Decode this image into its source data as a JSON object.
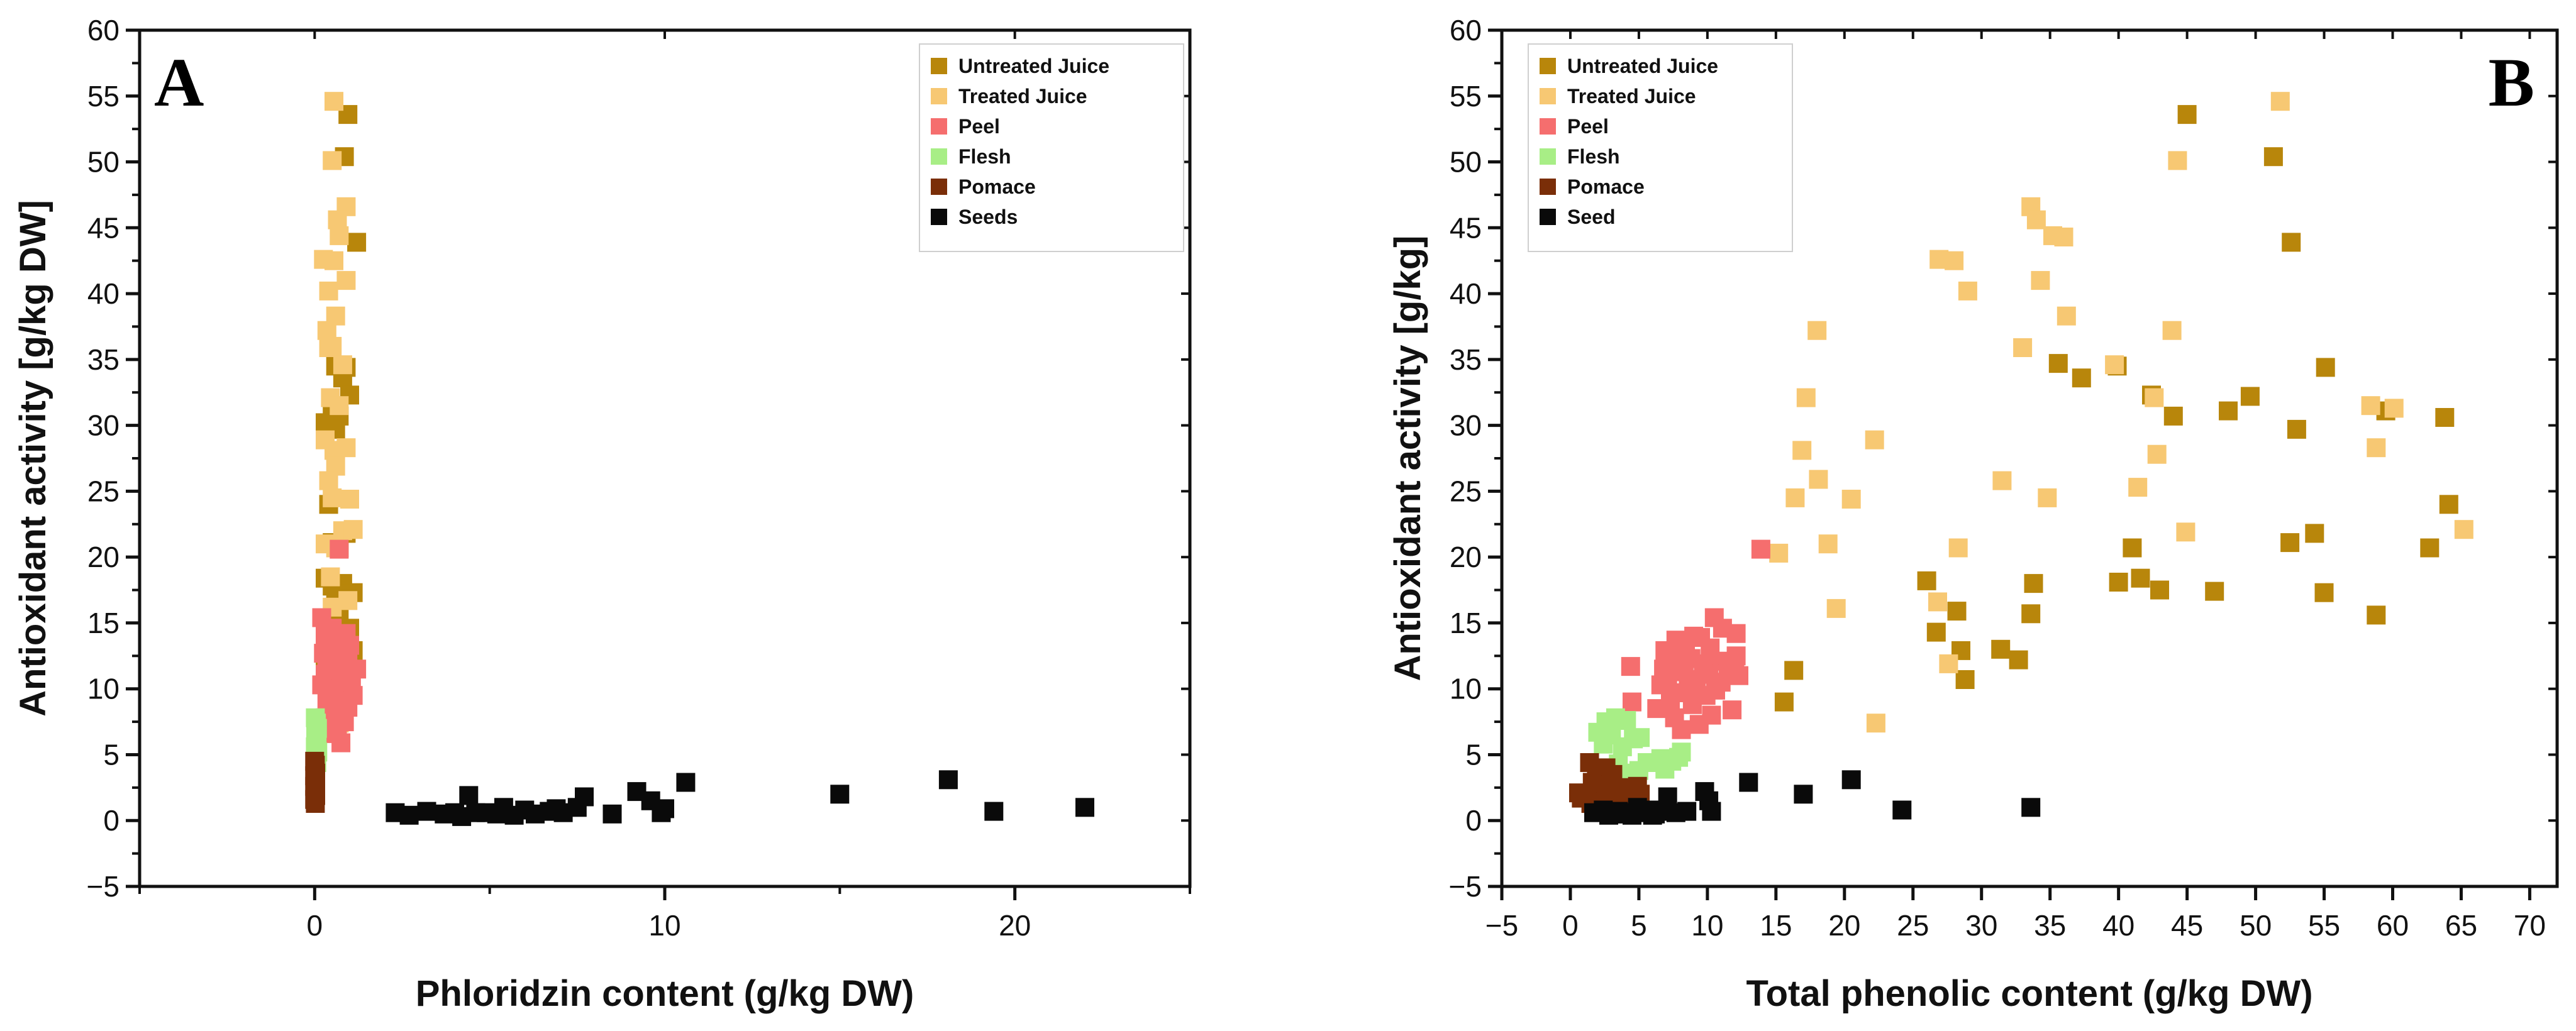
{
  "colors": {
    "untreated": "#B8860B",
    "treated": "#F7C873",
    "peel": "#F56E6E",
    "flesh": "#A8EE86",
    "pomace": "#7A2E08",
    "seeds": "#0A0A0A",
    "axis": "#111111"
  },
  "chart_data": [
    {
      "type": "scatter",
      "panel": "A",
      "xlabel": "Phloridzin content (g/kg DW)",
      "ylabel": "Antioxidant activity [g/kg DW]",
      "xlim": [
        -5,
        25
      ],
      "ylim": [
        -5,
        60
      ],
      "xticks": [
        0,
        10,
        20
      ],
      "yticks": [
        -5,
        0,
        5,
        10,
        15,
        20,
        25,
        30,
        35,
        40,
        45,
        50,
        55,
        60
      ],
      "legend_position": "top-right",
      "series": [
        {
          "name": "Untreated Juice",
          "color_key": "untreated",
          "x": [
            0.95,
            0.85,
            1.2,
            0.6,
            0.9,
            0.8,
            1.0,
            0.5,
            0.7,
            0.3,
            0.6,
            0.4,
            0.5,
            0.9,
            0.7,
            0.3,
            0.8,
            0.5,
            1.1,
            0.6,
            0.9,
            0.7,
            0.6,
            1.0,
            0.8,
            0.4,
            1.1,
            0.7,
            0.3,
            0.9
          ],
          "y": [
            53.6,
            50.4,
            43.9,
            34.5,
            34.4,
            33.6,
            32.3,
            31.1,
            30.7,
            30.2,
            29.7,
            24.0,
            21.1,
            21.8,
            20.7,
            18.4,
            18.0,
            17.8,
            17.3,
            17.4,
            17.2,
            15.7,
            15.6,
            14.6,
            14.3,
            13.1,
            12.9,
            12.5,
            12.2,
            10.7
          ]
        },
        {
          "name": "Treated Juice",
          "color_key": "treated",
          "x": [
            0.55,
            0.5,
            0.9,
            0.65,
            0.7,
            0.25,
            0.55,
            0.4,
            0.9,
            0.35,
            0.6,
            0.4,
            0.5,
            0.8,
            0.45,
            0.7,
            0.3,
            0.55,
            0.9,
            0.6,
            0.4,
            1.0,
            0.5,
            0.3,
            0.8,
            0.6,
            1.1,
            0.45,
            0.95,
            0.5,
            0.35,
            0.7
          ],
          "y": [
            54.6,
            50.1,
            46.6,
            45.6,
            44.4,
            42.6,
            42.5,
            40.2,
            41.0,
            37.2,
            38.3,
            35.9,
            36.0,
            34.6,
            32.1,
            31.5,
            28.9,
            28.1,
            28.3,
            26.9,
            25.8,
            24.4,
            24.5,
            21.0,
            22.0,
            20.7,
            22.1,
            18.5,
            16.7,
            16.2,
            13.5,
            7.4
          ]
        },
        {
          "name": "Peel",
          "color_key": "peel",
          "x": [
            0.7,
            0.2,
            0.5,
            0.9,
            0.3,
            0.6,
            1.0,
            0.4,
            0.8,
            0.25,
            0.55,
            0.95,
            0.35,
            0.7,
            1.2,
            0.45,
            0.85,
            0.3,
            0.6,
            1.05,
            0.5,
            0.75,
            0.2,
            0.65,
            0.9,
            0.4,
            1.1,
            0.55,
            0.8,
            0.35,
            0.6,
            0.95,
            0.45,
            0.7,
            0.3,
            0.85,
            0.5,
            0.65,
            0.4,
            0.75
          ],
          "y": [
            20.6,
            15.4,
            14.6,
            14.2,
            14.0,
            13.7,
            13.3,
            13.1,
            12.9,
            12.7,
            12.5,
            12.3,
            12.1,
            12.0,
            11.5,
            11.6,
            11.3,
            11.1,
            11.0,
            10.9,
            10.7,
            10.5,
            10.3,
            10.0,
            9.9,
            9.7,
            9.5,
            9.3,
            9.1,
            9.0,
            8.8,
            8.6,
            8.4,
            8.1,
            7.8,
            7.5,
            7.2,
            6.9,
            6.6,
            5.9
          ]
        },
        {
          "name": "Flesh",
          "color_key": "flesh",
          "x": [
            0.02,
            0.05,
            0.08,
            0.03,
            0.06,
            0.04,
            0.07,
            0.02,
            0.05,
            0.09,
            0.03,
            0.06
          ],
          "y": [
            7.8,
            7.4,
            7.0,
            6.7,
            6.4,
            6.1,
            5.9,
            5.6,
            5.4,
            5.2,
            4.8,
            4.4
          ]
        },
        {
          "name": "Pomace",
          "color_key": "pomace",
          "x": [
            0.0,
            0.02,
            0.01,
            0.03,
            0.0,
            0.02,
            0.01,
            0.03,
            0.0,
            0.02,
            0.01,
            0.03,
            0.0,
            0.02
          ],
          "y": [
            4.5,
            4.2,
            3.9,
            3.6,
            3.4,
            3.2,
            3.0,
            2.8,
            2.6,
            2.3,
            2.1,
            1.9,
            1.6,
            1.3
          ]
        },
        {
          "name": "Seeds",
          "color_key": "seeds",
          "x": [
            2.3,
            2.7,
            3.2,
            3.7,
            4.0,
            4.4,
            4.6,
            4.9,
            5.2,
            5.4,
            6.0,
            6.3,
            6.7,
            7.1,
            7.5,
            7.7,
            8.5,
            9.2,
            9.6,
            9.9,
            10.0,
            10.6,
            15.0,
            18.1,
            19.4,
            22.0,
            4.2,
            5.7,
            6.9
          ],
          "y": [
            0.6,
            0.4,
            0.7,
            0.5,
            0.6,
            1.9,
            0.6,
            0.6,
            0.5,
            1.0,
            0.8,
            0.5,
            0.7,
            0.6,
            1.0,
            1.8,
            0.5,
            2.2,
            1.5,
            0.6,
            0.9,
            2.9,
            2.0,
            3.1,
            0.7,
            1.0,
            0.3,
            0.4,
            0.9
          ]
        }
      ]
    },
    {
      "type": "scatter",
      "panel": "B",
      "xlabel": "Total phenolic content (g/kg DW)",
      "ylabel": "Antioxidant activity [g/kg]",
      "xlim": [
        -5,
        72
      ],
      "ylim": [
        -5,
        60
      ],
      "xticks": [
        -5,
        0,
        5,
        10,
        15,
        20,
        25,
        30,
        35,
        40,
        45,
        50,
        55,
        60,
        65,
        70
      ],
      "yticks": [
        -5,
        0,
        5,
        10,
        15,
        20,
        25,
        30,
        35,
        40,
        45,
        50,
        55,
        60
      ],
      "legend_position": "top-left",
      "series": [
        {
          "name": "Untreated Juice",
          "color_key": "untreated",
          "x": [
            45.0,
            51.3,
            52.6,
            35.6,
            39.9,
            37.3,
            42.4,
            44.0,
            48.0,
            49.6,
            53.0,
            55.1,
            59.5,
            63.8,
            64.1,
            62.7,
            52.5,
            54.3,
            41.0,
            41.6,
            40.0,
            43.0,
            47.0,
            55.0,
            58.8,
            33.8,
            26.0,
            28.2,
            33.6,
            26.7,
            28.5,
            31.4,
            32.7,
            16.3,
            15.6,
            28.8
          ],
          "y": [
            53.6,
            50.4,
            43.9,
            34.7,
            34.5,
            33.6,
            32.3,
            30.7,
            31.1,
            32.2,
            29.7,
            34.4,
            31.1,
            30.6,
            24.0,
            20.7,
            21.1,
            21.8,
            20.7,
            18.4,
            18.1,
            17.5,
            17.4,
            17.3,
            15.6,
            18.0,
            18.2,
            15.9,
            15.7,
            14.3,
            12.9,
            13.0,
            12.2,
            11.4,
            9.0,
            10.7
          ]
        },
        {
          "name": "Treated Juice",
          "color_key": "treated",
          "x": [
            51.8,
            44.3,
            33.6,
            34.0,
            35.2,
            36.0,
            26.9,
            28.0,
            29.0,
            34.3,
            43.9,
            18.0,
            36.2,
            33.0,
            39.7,
            17.2,
            42.6,
            58.4,
            60.1,
            22.2,
            16.9,
            18.1,
            42.8,
            41.4,
            31.5,
            34.8,
            20.5,
            16.4,
            18.8,
            15.2,
            28.3,
            44.9,
            65.2,
            58.8,
            19.4,
            26.8,
            27.6,
            22.3
          ],
          "y": [
            54.6,
            50.1,
            46.6,
            45.6,
            44.4,
            44.3,
            42.6,
            42.5,
            40.2,
            41.0,
            37.2,
            37.2,
            38.3,
            35.9,
            34.6,
            32.1,
            32.1,
            31.5,
            31.3,
            28.9,
            28.1,
            25.9,
            27.8,
            25.3,
            25.8,
            24.5,
            24.4,
            24.5,
            21.0,
            20.3,
            20.7,
            21.9,
            22.1,
            28.3,
            16.1,
            16.6,
            11.9,
            7.4
          ]
        },
        {
          "name": "Peel",
          "color_key": "peel",
          "x": [
            13.9,
            10.5,
            9.0,
            11.1,
            12.1,
            7.7,
            8.4,
            9.5,
            10.2,
            6.9,
            8.0,
            12.1,
            4.4,
            8.8,
            10.9,
            7.4,
            9.7,
            11.5,
            6.8,
            8.3,
            10.1,
            12.3,
            7.1,
            9.2,
            11.0,
            6.6,
            8.6,
            10.6,
            7.9,
            9.9,
            4.5,
            7.3,
            11.8,
            8.9,
            6.3,
            10.3,
            7.6,
            9.4,
            12.0,
            8.1
          ],
          "y": [
            20.6,
            15.4,
            14.0,
            14.6,
            14.2,
            13.7,
            13.3,
            13.9,
            13.1,
            12.9,
            12.7,
            12.5,
            11.7,
            12.3,
            12.1,
            12.0,
            11.9,
            11.6,
            11.5,
            11.3,
            11.1,
            11.0,
            10.9,
            10.7,
            10.5,
            10.3,
            10.1,
            9.9,
            9.7,
            9.5,
            9.0,
            9.2,
            8.4,
            8.8,
            8.5,
            8.0,
            7.8,
            7.3,
            11.2,
            6.9
          ]
        },
        {
          "name": "Flesh",
          "color_key": "flesh",
          "x": [
            2.6,
            3.3,
            4.1,
            2.0,
            3.0,
            5.1,
            4.6,
            2.4,
            3.8,
            8.1,
            6.6,
            7.4,
            3.5,
            2.8,
            5.6,
            4.3,
            6.9,
            2.2,
            7.9,
            5.0
          ],
          "y": [
            7.5,
            7.8,
            7.6,
            6.7,
            6.5,
            6.3,
            6.2,
            5.8,
            5.6,
            5.2,
            4.7,
            4.5,
            4.3,
            4.0,
            4.4,
            3.6,
            3.9,
            3.4,
            4.8,
            3.8
          ]
        },
        {
          "name": "Pomace",
          "color_key": "pomace",
          "x": [
            1.4,
            2.6,
            1.9,
            3.1,
            0.6,
            2.2,
            1.6,
            2.9,
            3.6,
            4.2,
            2.0,
            1.2,
            0.8,
            2.8,
            3.9,
            4.6,
            1.5,
            2.4,
            3.2,
            5.1,
            1.0,
            4.9
          ],
          "y": [
            4.4,
            4.0,
            3.7,
            3.5,
            2.1,
            3.2,
            2.9,
            2.7,
            2.5,
            2.3,
            2.2,
            1.9,
            1.7,
            1.6,
            1.8,
            2.4,
            1.3,
            1.4,
            1.2,
            2.0,
            1.8,
            2.6
          ]
        },
        {
          "name": "Seed",
          "color_key": "seeds",
          "x": [
            1.7,
            2.4,
            3.1,
            3.5,
            4.0,
            4.5,
            4.9,
            5.3,
            5.8,
            6.2,
            6.6,
            7.1,
            7.7,
            8.5,
            9.8,
            10.1,
            10.3,
            13.0,
            17.0,
            20.5,
            24.2,
            33.6,
            2.8,
            4.4,
            6.0
          ],
          "y": [
            0.6,
            0.8,
            0.5,
            0.7,
            0.5,
            0.4,
            1.0,
            0.6,
            0.8,
            0.5,
            0.7,
            1.8,
            0.6,
            0.7,
            2.2,
            1.5,
            0.7,
            2.9,
            2.0,
            3.1,
            0.8,
            1.0,
            0.4,
            0.6,
            0.4
          ]
        }
      ]
    }
  ]
}
